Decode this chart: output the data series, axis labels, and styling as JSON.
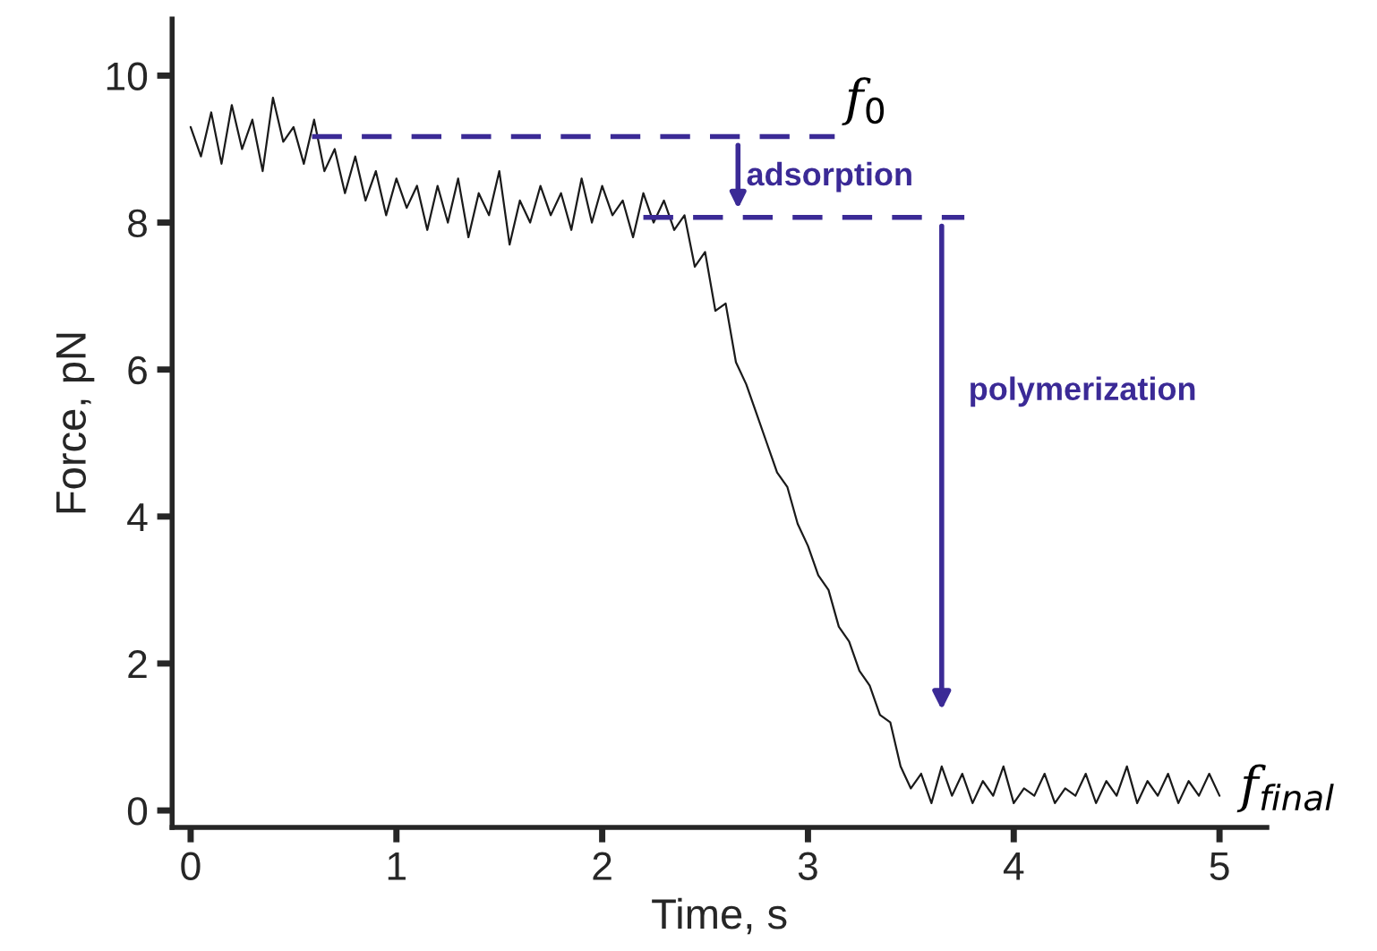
{
  "chart_data": {
    "type": "line",
    "xlabel": "Time, s",
    "ylabel": "Force, pN",
    "xlim": [
      -0.09,
      5.23
    ],
    "ylim": [
      -0.23,
      10.77
    ],
    "xticks": [
      0,
      1,
      2,
      3,
      4,
      5
    ],
    "yticks": [
      0,
      2,
      4,
      6,
      8,
      10
    ],
    "grid": false,
    "legend": false,
    "marker": "none",
    "series": [
      {
        "color": "#1a1a1a",
        "line_style": "solid",
        "x": [
          0,
          0.05,
          0.1,
          0.15,
          0.2,
          0.25,
          0.3,
          0.35,
          0.4,
          0.45,
          0.5,
          0.55,
          0.6,
          0.65,
          0.7,
          0.75,
          0.8,
          0.85,
          0.9,
          0.95,
          1,
          1.05,
          1.1,
          1.15,
          1.2,
          1.25,
          1.3,
          1.35,
          1.4,
          1.45,
          1.5,
          1.55,
          1.6,
          1.65,
          1.7,
          1.75,
          1.8,
          1.85,
          1.9,
          1.95,
          2,
          2.05,
          2.1,
          2.15,
          2.2,
          2.25,
          2.3,
          2.35,
          2.4,
          2.45,
          2.5,
          2.55,
          2.6,
          2.65,
          2.7,
          2.75,
          2.8,
          2.85,
          2.9,
          2.95,
          3,
          3.05,
          3.1,
          3.15,
          3.2,
          3.25,
          3.3,
          3.35,
          3.4,
          3.45,
          3.5,
          3.55,
          3.6,
          3.65,
          3.7,
          3.75,
          3.8,
          3.85,
          3.9,
          3.95,
          4,
          4.05,
          4.1,
          4.15,
          4.2,
          4.25,
          4.3,
          4.35,
          4.4,
          4.45,
          4.5,
          4.55,
          4.6,
          4.65,
          4.7,
          4.75,
          4.8,
          4.85,
          4.9,
          4.95,
          5
        ],
        "values": [
          9.3,
          8.9,
          9.5,
          8.8,
          9.6,
          9.0,
          9.4,
          8.7,
          9.7,
          9.1,
          9.3,
          8.8,
          9.4,
          8.7,
          9.0,
          8.4,
          8.9,
          8.3,
          8.7,
          8.1,
          8.6,
          8.2,
          8.5,
          7.9,
          8.5,
          8.0,
          8.6,
          7.8,
          8.4,
          8.1,
          8.7,
          7.7,
          8.3,
          8.0,
          8.5,
          8.1,
          8.4,
          7.9,
          8.6,
          8.0,
          8.5,
          8.1,
          8.3,
          7.8,
          8.4,
          8.0,
          8.3,
          7.9,
          8.1,
          7.4,
          7.6,
          6.8,
          6.9,
          6.1,
          5.8,
          5.4,
          5.0,
          4.6,
          4.4,
          3.9,
          3.6,
          3.2,
          3.0,
          2.5,
          2.3,
          1.9,
          1.7,
          1.3,
          1.2,
          0.6,
          0.3,
          0.5,
          0.1,
          0.6,
          0.2,
          0.5,
          0.1,
          0.4,
          0.2,
          0.6,
          0.1,
          0.3,
          0.2,
          0.5,
          0.1,
          0.3,
          0.2,
          0.5,
          0.1,
          0.4,
          0.2,
          0.6,
          0.1,
          0.4,
          0.2,
          0.5,
          0.1,
          0.4,
          0.2,
          0.5,
          0.2
        ]
      },
      {
        "color": "#3b2a96",
        "line_style": "dashed",
        "x": [
          0.59,
          3.13
        ],
        "values": [
          9.17,
          9.17
        ]
      },
      {
        "color": "#3b2a96",
        "line_style": "dashed",
        "x": [
          2.2,
          3.76
        ],
        "values": [
          8.07,
          8.07
        ]
      }
    ],
    "annotations": [
      {
        "text": "f$_{0}$",
        "x": 3.13,
        "y": 9.17
      },
      {
        "text": "adsorption",
        "x": 2.66,
        "y": 8.07
      },
      "polymerization",
      {
        "text": "f$_{final}$",
        "x": 5.0,
        "y": 0.3
      }
    ]
  }
}
